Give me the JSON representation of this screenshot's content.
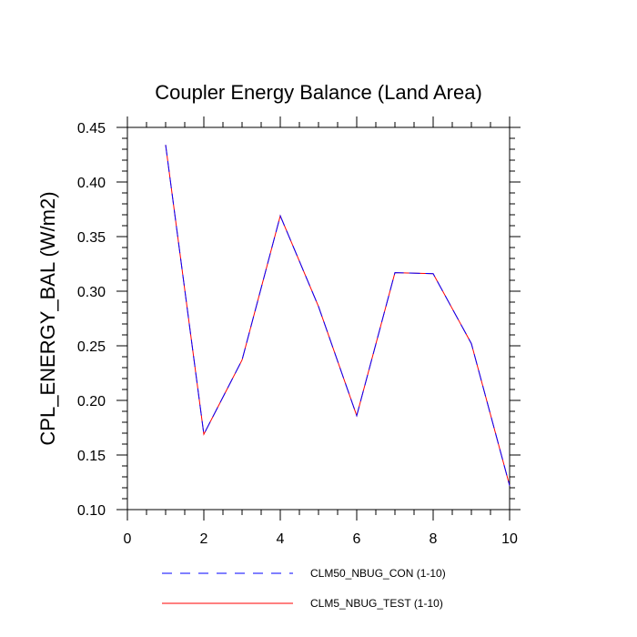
{
  "chart_data": {
    "type": "line",
    "title": "Coupler Energy Balance (Land Area)",
    "xlabel": "",
    "ylabel": "CPL_ENERGY_BAL  (W/m2)",
    "xlim": [
      0,
      10
    ],
    "ylim": [
      0.1,
      0.45
    ],
    "x_ticks": [
      "0",
      "2",
      "4",
      "6",
      "8",
      "10"
    ],
    "y_ticks": [
      "0.10",
      "0.15",
      "0.20",
      "0.25",
      "0.30",
      "0.35",
      "0.40",
      "0.45"
    ],
    "x": [
      1,
      2,
      3,
      4,
      5,
      6,
      7,
      8,
      9,
      10
    ],
    "series": [
      {
        "name": "CLM50_NBUG_CON (1-10)",
        "color": "#0000ff",
        "dash": "dashed",
        "values": [
          0.434,
          0.169,
          0.237,
          0.369,
          0.286,
          0.186,
          0.317,
          0.316,
          0.252,
          0.122
        ]
      },
      {
        "name": "CLM5_NBUG_TEST (1-10)",
        "color": "#ff0000",
        "dash": "solid",
        "values": [
          0.434,
          0.169,
          0.237,
          0.369,
          0.286,
          0.186,
          0.317,
          0.316,
          0.252,
          0.122
        ]
      }
    ],
    "grid": false,
    "legend_position": "bottom"
  }
}
